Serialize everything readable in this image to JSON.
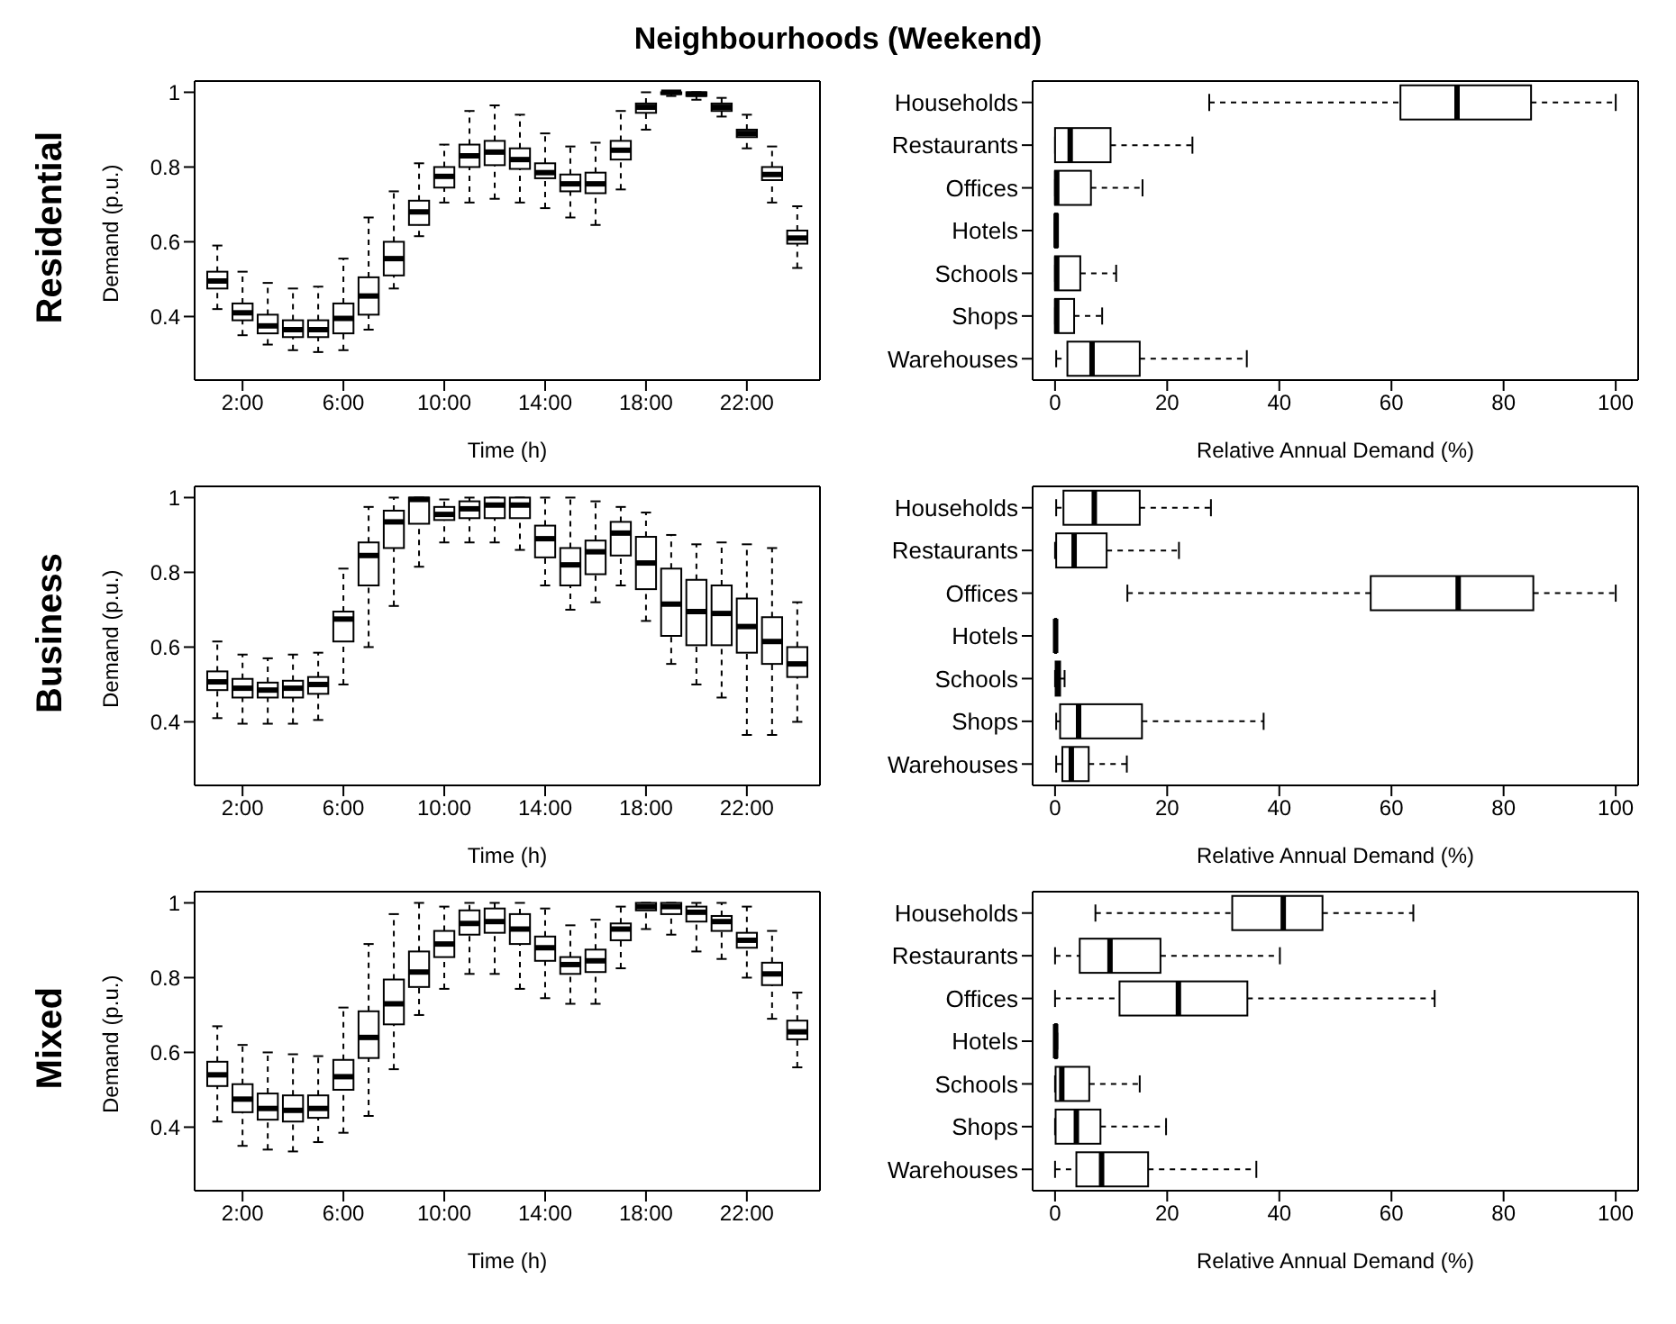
{
  "chart_data": [
    {
      "type": "box",
      "title": "Neighbourhoods (Weekend)",
      "subtitle": "Residential",
      "xlabel": "Time (h)",
      "ylabel": "Demand (p.u.)",
      "x": [
        1,
        2,
        3,
        4,
        5,
        6,
        7,
        8,
        9,
        10,
        11,
        12,
        13,
        14,
        15,
        16,
        17,
        18,
        19,
        20,
        21,
        22,
        23,
        24
      ],
      "xlim": [
        0.1,
        24.9
      ],
      "xticks": [
        {
          "value": 2,
          "label": "2:00"
        },
        {
          "value": 6,
          "label": "6:00"
        },
        {
          "value": 10,
          "label": "10:00"
        },
        {
          "value": 14,
          "label": "14:00"
        },
        {
          "value": 18,
          "label": "18:00"
        },
        {
          "value": 22,
          "label": "22:00"
        }
      ],
      "ylim": [
        0.23,
        1.03
      ],
      "yticks": [
        0.4,
        0.6,
        0.8,
        1
      ],
      "boxes": [
        {
          "low": 0.42,
          "q1": 0.475,
          "median": 0.495,
          "q3": 0.52,
          "high": 0.59
        },
        {
          "low": 0.35,
          "q1": 0.39,
          "median": 0.41,
          "q3": 0.435,
          "high": 0.52
        },
        {
          "low": 0.325,
          "q1": 0.355,
          "median": 0.375,
          "q3": 0.405,
          "high": 0.49
        },
        {
          "low": 0.31,
          "q1": 0.345,
          "median": 0.365,
          "q3": 0.39,
          "high": 0.475
        },
        {
          "low": 0.305,
          "q1": 0.345,
          "median": 0.365,
          "q3": 0.39,
          "high": 0.48
        },
        {
          "low": 0.31,
          "q1": 0.355,
          "median": 0.395,
          "q3": 0.435,
          "high": 0.555
        },
        {
          "low": 0.365,
          "q1": 0.405,
          "median": 0.455,
          "q3": 0.505,
          "high": 0.665
        },
        {
          "low": 0.475,
          "q1": 0.51,
          "median": 0.555,
          "q3": 0.6,
          "high": 0.735
        },
        {
          "low": 0.615,
          "q1": 0.645,
          "median": 0.68,
          "q3": 0.71,
          "high": 0.81
        },
        {
          "low": 0.705,
          "q1": 0.745,
          "median": 0.775,
          "q3": 0.8,
          "high": 0.86
        },
        {
          "low": 0.705,
          "q1": 0.8,
          "median": 0.83,
          "q3": 0.86,
          "high": 0.95
        },
        {
          "low": 0.715,
          "q1": 0.805,
          "median": 0.84,
          "q3": 0.87,
          "high": 0.965
        },
        {
          "low": 0.705,
          "q1": 0.795,
          "median": 0.82,
          "q3": 0.85,
          "high": 0.94
        },
        {
          "low": 0.69,
          "q1": 0.77,
          "median": 0.785,
          "q3": 0.81,
          "high": 0.89
        },
        {
          "low": 0.665,
          "q1": 0.735,
          "median": 0.755,
          "q3": 0.78,
          "high": 0.855
        },
        {
          "low": 0.645,
          "q1": 0.73,
          "median": 0.755,
          "q3": 0.785,
          "high": 0.865
        },
        {
          "low": 0.74,
          "q1": 0.82,
          "median": 0.845,
          "q3": 0.87,
          "high": 0.95
        },
        {
          "low": 0.9,
          "q1": 0.945,
          "median": 0.96,
          "q3": 0.97,
          "high": 1.0
        },
        {
          "low": 0.99,
          "q1": 0.995,
          "median": 1.0,
          "q3": 1.0,
          "high": 1.0
        },
        {
          "low": 0.98,
          "q1": 0.99,
          "median": 0.995,
          "q3": 1.0,
          "high": 1.0
        },
        {
          "low": 0.935,
          "q1": 0.95,
          "median": 0.96,
          "q3": 0.97,
          "high": 0.985
        },
        {
          "low": 0.85,
          "q1": 0.88,
          "median": 0.89,
          "q3": 0.9,
          "high": 0.94
        },
        {
          "low": 0.705,
          "q1": 0.765,
          "median": 0.78,
          "q3": 0.8,
          "high": 0.855
        },
        {
          "low": 0.53,
          "q1": 0.595,
          "median": 0.61,
          "q3": 0.63,
          "high": 0.695
        }
      ]
    },
    {
      "type": "box",
      "orientation": "horizontal",
      "categories": [
        "Households",
        "Restaurants",
        "Offices",
        "Hotels",
        "Schools",
        "Shops",
        "Warehouses"
      ],
      "xlabel": "Relative Annual Demand (%)",
      "xlim": [
        -4,
        104
      ],
      "xticks": [
        0,
        20,
        40,
        60,
        80,
        100
      ],
      "boxes": [
        {
          "low": 27.5,
          "q1": 61.6,
          "median": 71.7,
          "q3": 84.9,
          "high": 100
        },
        {
          "low": 0,
          "q1": 0,
          "median": 2.7,
          "q3": 9.9,
          "high": 24.5
        },
        {
          "low": 0,
          "q1": 0,
          "median": 0.3,
          "q3": 6.4,
          "high": 15.6
        },
        {
          "low": 0,
          "q1": 0,
          "median": 0.2,
          "q3": 0.4,
          "high": 0.5
        },
        {
          "low": 0,
          "q1": 0,
          "median": 0.3,
          "q3": 4.5,
          "high": 10.9
        },
        {
          "low": 0,
          "q1": 0,
          "median": 0.3,
          "q3": 3.4,
          "high": 8.4
        },
        {
          "low": 0.2,
          "q1": 2.2,
          "median": 6.6,
          "q3": 15.1,
          "high": 34.2
        }
      ]
    },
    {
      "type": "box",
      "subtitle": "Business",
      "xlabel": "Time (h)",
      "ylabel": "Demand (p.u.)",
      "x": [
        1,
        2,
        3,
        4,
        5,
        6,
        7,
        8,
        9,
        10,
        11,
        12,
        13,
        14,
        15,
        16,
        17,
        18,
        19,
        20,
        21,
        22,
        23,
        24
      ],
      "xlim": [
        0.1,
        24.9
      ],
      "xticks": [
        {
          "value": 2,
          "label": "2:00"
        },
        {
          "value": 6,
          "label": "6:00"
        },
        {
          "value": 10,
          "label": "10:00"
        },
        {
          "value": 14,
          "label": "14:00"
        },
        {
          "value": 18,
          "label": "18:00"
        },
        {
          "value": 22,
          "label": "22:00"
        }
      ],
      "ylim": [
        0.23,
        1.03
      ],
      "yticks": [
        0.4,
        0.6,
        0.8,
        1
      ],
      "boxes": [
        {
          "low": 0.41,
          "q1": 0.485,
          "median": 0.507,
          "q3": 0.535,
          "high": 0.615
        },
        {
          "low": 0.395,
          "q1": 0.465,
          "median": 0.49,
          "q3": 0.515,
          "high": 0.58
        },
        {
          "low": 0.395,
          "q1": 0.465,
          "median": 0.485,
          "q3": 0.505,
          "high": 0.57
        },
        {
          "low": 0.395,
          "q1": 0.465,
          "median": 0.49,
          "q3": 0.51,
          "high": 0.58
        },
        {
          "low": 0.405,
          "q1": 0.475,
          "median": 0.5,
          "q3": 0.52,
          "high": 0.585
        },
        {
          "low": 0.5,
          "q1": 0.615,
          "median": 0.675,
          "q3": 0.695,
          "high": 0.81
        },
        {
          "low": 0.6,
          "q1": 0.765,
          "median": 0.845,
          "q3": 0.88,
          "high": 0.975
        },
        {
          "low": 0.71,
          "q1": 0.865,
          "median": 0.935,
          "q3": 0.965,
          "high": 1.0
        },
        {
          "low": 0.815,
          "q1": 0.93,
          "median": 0.995,
          "q3": 1.0,
          "high": 1.0
        },
        {
          "low": 0.88,
          "q1": 0.94,
          "median": 0.955,
          "q3": 0.975,
          "high": 0.995
        },
        {
          "low": 0.88,
          "q1": 0.945,
          "median": 0.97,
          "q3": 0.99,
          "high": 1.0
        },
        {
          "low": 0.88,
          "q1": 0.945,
          "median": 0.98,
          "q3": 1.0,
          "high": 1.0
        },
        {
          "low": 0.86,
          "q1": 0.945,
          "median": 0.98,
          "q3": 1.0,
          "high": 1.0
        },
        {
          "low": 0.765,
          "q1": 0.84,
          "median": 0.89,
          "q3": 0.925,
          "high": 1.0
        },
        {
          "low": 0.7,
          "q1": 0.765,
          "median": 0.82,
          "q3": 0.865,
          "high": 1.0
        },
        {
          "low": 0.72,
          "q1": 0.795,
          "median": 0.855,
          "q3": 0.885,
          "high": 0.99
        },
        {
          "low": 0.765,
          "q1": 0.845,
          "median": 0.905,
          "q3": 0.935,
          "high": 0.975
        },
        {
          "low": 0.67,
          "q1": 0.755,
          "median": 0.825,
          "q3": 0.895,
          "high": 0.96
        },
        {
          "low": 0.555,
          "q1": 0.63,
          "median": 0.715,
          "q3": 0.81,
          "high": 0.9
        },
        {
          "low": 0.5,
          "q1": 0.605,
          "median": 0.695,
          "q3": 0.78,
          "high": 0.875
        },
        {
          "low": 0.465,
          "q1": 0.605,
          "median": 0.69,
          "q3": 0.765,
          "high": 0.88
        },
        {
          "low": 0.365,
          "q1": 0.585,
          "median": 0.655,
          "q3": 0.73,
          "high": 0.875
        },
        {
          "low": 0.365,
          "q1": 0.555,
          "median": 0.615,
          "q3": 0.68,
          "high": 0.865
        },
        {
          "low": 0.4,
          "q1": 0.52,
          "median": 0.555,
          "q3": 0.6,
          "high": 0.72
        }
      ]
    },
    {
      "type": "box",
      "orientation": "horizontal",
      "categories": [
        "Households",
        "Restaurants",
        "Offices",
        "Hotels",
        "Schools",
        "Shops",
        "Warehouses"
      ],
      "xlabel": "Relative Annual Demand (%)",
      "xlim": [
        -4,
        104
      ],
      "xticks": [
        0,
        20,
        40,
        60,
        80,
        100
      ],
      "boxes": [
        {
          "low": 0.2,
          "q1": 1.5,
          "median": 7,
          "q3": 15.1,
          "high": 27.8
        },
        {
          "low": 0,
          "q1": 0.2,
          "median": 3.4,
          "q3": 9.2,
          "high": 22.1
        },
        {
          "low": 12.9,
          "q1": 56.3,
          "median": 71.9,
          "q3": 85.3,
          "high": 100
        },
        {
          "low": 0,
          "q1": 0,
          "median": 0.1,
          "q3": 0.2,
          "high": 0.3
        },
        {
          "low": 0,
          "q1": 0.1,
          "median": 0.5,
          "q3": 0.9,
          "high": 1.7
        },
        {
          "low": 0.2,
          "q1": 0.9,
          "median": 4.2,
          "q3": 15.5,
          "high": 37.2
        },
        {
          "low": 0.2,
          "q1": 1.3,
          "median": 2.9,
          "q3": 6,
          "high": 12.8
        }
      ]
    },
    {
      "type": "box",
      "subtitle": "Mixed",
      "xlabel": "Time (h)",
      "ylabel": "Demand (p.u.)",
      "x": [
        1,
        2,
        3,
        4,
        5,
        6,
        7,
        8,
        9,
        10,
        11,
        12,
        13,
        14,
        15,
        16,
        17,
        18,
        19,
        20,
        21,
        22,
        23,
        24
      ],
      "xlim": [
        0.1,
        24.9
      ],
      "xticks": [
        {
          "value": 2,
          "label": "2:00"
        },
        {
          "value": 6,
          "label": "6:00"
        },
        {
          "value": 10,
          "label": "10:00"
        },
        {
          "value": 14,
          "label": "14:00"
        },
        {
          "value": 18,
          "label": "18:00"
        },
        {
          "value": 22,
          "label": "22:00"
        }
      ],
      "ylim": [
        0.23,
        1.03
      ],
      "yticks": [
        0.4,
        0.6,
        0.8,
        1
      ],
      "boxes": [
        {
          "low": 0.415,
          "q1": 0.51,
          "median": 0.54,
          "q3": 0.575,
          "high": 0.67
        },
        {
          "low": 0.35,
          "q1": 0.44,
          "median": 0.475,
          "q3": 0.515,
          "high": 0.62
        },
        {
          "low": 0.34,
          "q1": 0.42,
          "median": 0.45,
          "q3": 0.49,
          "high": 0.6
        },
        {
          "low": 0.335,
          "q1": 0.415,
          "median": 0.445,
          "q3": 0.485,
          "high": 0.595
        },
        {
          "low": 0.36,
          "q1": 0.425,
          "median": 0.45,
          "q3": 0.485,
          "high": 0.59
        },
        {
          "low": 0.385,
          "q1": 0.5,
          "median": 0.535,
          "q3": 0.58,
          "high": 0.72
        },
        {
          "low": 0.43,
          "q1": 0.585,
          "median": 0.64,
          "q3": 0.71,
          "high": 0.89
        },
        {
          "low": 0.555,
          "q1": 0.675,
          "median": 0.73,
          "q3": 0.795,
          "high": 0.97
        },
        {
          "low": 0.7,
          "q1": 0.775,
          "median": 0.815,
          "q3": 0.87,
          "high": 1.0
        },
        {
          "low": 0.77,
          "q1": 0.855,
          "median": 0.89,
          "q3": 0.925,
          "high": 0.99
        },
        {
          "low": 0.81,
          "q1": 0.915,
          "median": 0.945,
          "q3": 0.98,
          "high": 1.0
        },
        {
          "low": 0.81,
          "q1": 0.92,
          "median": 0.95,
          "q3": 0.985,
          "high": 1.0
        },
        {
          "low": 0.77,
          "q1": 0.89,
          "median": 0.93,
          "q3": 0.97,
          "high": 1.0
        },
        {
          "low": 0.745,
          "q1": 0.845,
          "median": 0.88,
          "q3": 0.91,
          "high": 0.985
        },
        {
          "low": 0.73,
          "q1": 0.81,
          "median": 0.835,
          "q3": 0.855,
          "high": 0.94
        },
        {
          "low": 0.73,
          "q1": 0.815,
          "median": 0.845,
          "q3": 0.875,
          "high": 0.955
        },
        {
          "low": 0.825,
          "q1": 0.9,
          "median": 0.93,
          "q3": 0.945,
          "high": 0.99
        },
        {
          "low": 0.93,
          "q1": 0.98,
          "median": 0.99,
          "q3": 1.0,
          "high": 1.0
        },
        {
          "low": 0.915,
          "q1": 0.97,
          "median": 0.99,
          "q3": 1.0,
          "high": 1.0
        },
        {
          "low": 0.87,
          "q1": 0.95,
          "median": 0.975,
          "q3": 0.99,
          "high": 1.0
        },
        {
          "low": 0.85,
          "q1": 0.925,
          "median": 0.95,
          "q3": 0.965,
          "high": 1.0
        },
        {
          "low": 0.8,
          "q1": 0.88,
          "median": 0.9,
          "q3": 0.92,
          "high": 0.99
        },
        {
          "low": 0.69,
          "q1": 0.78,
          "median": 0.81,
          "q3": 0.84,
          "high": 0.925
        },
        {
          "low": 0.56,
          "q1": 0.635,
          "median": 0.655,
          "q3": 0.685,
          "high": 0.76
        }
      ]
    },
    {
      "type": "box",
      "orientation": "horizontal",
      "categories": [
        "Households",
        "Restaurants",
        "Offices",
        "Hotels",
        "Schools",
        "Shops",
        "Warehouses"
      ],
      "xlabel": "Relative Annual Demand (%)",
      "xlim": [
        -4,
        104
      ],
      "xticks": [
        0,
        20,
        40,
        60,
        80,
        100
      ],
      "boxes": [
        {
          "low": 7.2,
          "q1": 31.6,
          "median": 40.7,
          "q3": 47.7,
          "high": 63.9
        },
        {
          "low": 0,
          "q1": 4.4,
          "median": 9.8,
          "q3": 18.8,
          "high": 40.1
        },
        {
          "low": 0,
          "q1": 11.5,
          "median": 22,
          "q3": 34.3,
          "high": 67.7
        },
        {
          "low": 0,
          "q1": 0,
          "median": 0.1,
          "q3": 0.3,
          "high": 0.4
        },
        {
          "low": 0,
          "q1": 0.1,
          "median": 1.2,
          "q3": 6.1,
          "high": 15.1
        },
        {
          "low": 0,
          "q1": 0.1,
          "median": 3.8,
          "q3": 8.1,
          "high": 19.8
        },
        {
          "low": 0,
          "q1": 3.8,
          "median": 8.3,
          "q3": 16.6,
          "high": 35.9
        }
      ]
    }
  ]
}
